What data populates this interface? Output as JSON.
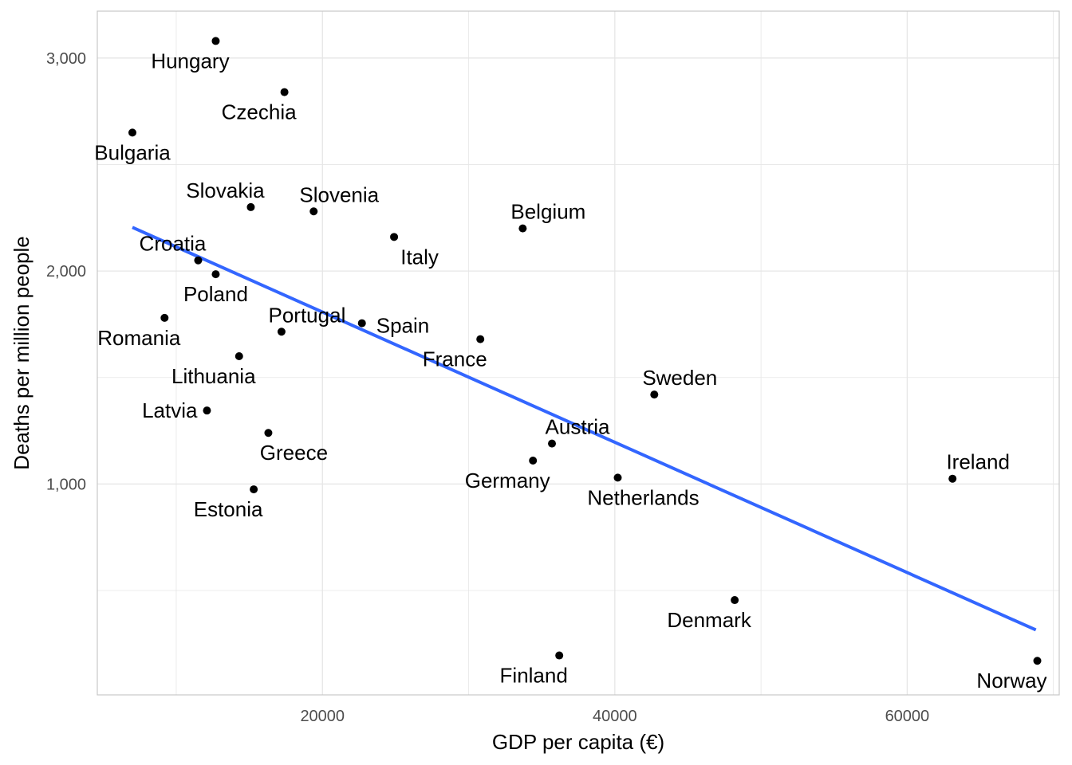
{
  "chart_data": {
    "type": "scatter",
    "title": "",
    "xlabel": "GDP per capita (€)",
    "ylabel": "Deaths per million people",
    "xlim": [
      4600,
      70400
    ],
    "ylim": [
      10,
      3220
    ],
    "x_ticks": [
      {
        "value": 20000,
        "label": "20000"
      },
      {
        "value": 40000,
        "label": "40000"
      },
      {
        "value": 60000,
        "label": "60000"
      }
    ],
    "x_minor_ticks": [
      10000,
      30000,
      50000,
      70000
    ],
    "y_ticks": [
      {
        "value": 1000,
        "label": "1,000"
      },
      {
        "value": 2000,
        "label": "2,000"
      },
      {
        "value": 3000,
        "label": "3,000"
      }
    ],
    "y_minor_ticks": [
      500,
      1500,
      2500
    ],
    "grid": true,
    "point_color": "#000000",
    "trend_color": "#3366FF",
    "background_color": "#ffffff",
    "grid_color": "#e6e6e6",
    "panel_border_color": "#c7c7c7",
    "trend_line": {
      "type": "linear",
      "x": [
        7000,
        68800
      ],
      "y": [
        2205,
        315
      ]
    },
    "points": [
      {
        "label": "Hungary",
        "x": 12700,
        "y": 3080,
        "label_pos": "below-left"
      },
      {
        "label": "Czechia",
        "x": 17400,
        "y": 2840,
        "label_pos": "below-left"
      },
      {
        "label": "Bulgaria",
        "x": 7000,
        "y": 2650,
        "label_pos": "below"
      },
      {
        "label": "Slovakia",
        "x": 15100,
        "y": 2300,
        "label_pos": "above-left"
      },
      {
        "label": "Slovenia",
        "x": 19400,
        "y": 2280,
        "label_pos": "above"
      },
      {
        "label": "Italy",
        "x": 24900,
        "y": 2160,
        "label_pos": "below-right"
      },
      {
        "label": "Belgium",
        "x": 33700,
        "y": 2200,
        "label_pos": "above-right"
      },
      {
        "label": "Croatia",
        "x": 11500,
        "y": 2050,
        "label_pos": "above-left"
      },
      {
        "label": "Poland",
        "x": 12700,
        "y": 1985,
        "label_pos": "below"
      },
      {
        "label": "Romania",
        "x": 9200,
        "y": 1780,
        "label_pos": "below-left"
      },
      {
        "label": "Portugal",
        "x": 17200,
        "y": 1715,
        "label_pos": "above-right"
      },
      {
        "label": "Spain",
        "x": 22700,
        "y": 1755,
        "label_pos": "right"
      },
      {
        "label": "France",
        "x": 30800,
        "y": 1680,
        "label_pos": "below-left"
      },
      {
        "label": "Lithuania",
        "x": 14300,
        "y": 1600,
        "label_pos": "below-left"
      },
      {
        "label": "Latvia",
        "x": 12100,
        "y": 1345,
        "label_pos": "left"
      },
      {
        "label": "Sweden",
        "x": 42700,
        "y": 1420,
        "label_pos": "above-right"
      },
      {
        "label": "Greece",
        "x": 16300,
        "y": 1240,
        "label_pos": "below-right"
      },
      {
        "label": "Austria",
        "x": 35700,
        "y": 1190,
        "label_pos": "above-right"
      },
      {
        "label": "Germany",
        "x": 34400,
        "y": 1110,
        "label_pos": "below-left"
      },
      {
        "label": "Netherlands",
        "x": 40200,
        "y": 1030,
        "label_pos": "below-right"
      },
      {
        "label": "Ireland",
        "x": 63100,
        "y": 1025,
        "label_pos": "above-right"
      },
      {
        "label": "Estonia",
        "x": 15300,
        "y": 975,
        "label_pos": "below-left"
      },
      {
        "label": "Denmark",
        "x": 48200,
        "y": 455,
        "label_pos": "below-left"
      },
      {
        "label": "Finland",
        "x": 36200,
        "y": 195,
        "label_pos": "below-left"
      },
      {
        "label": "Norway",
        "x": 68900,
        "y": 170,
        "label_pos": "below-left"
      }
    ]
  }
}
